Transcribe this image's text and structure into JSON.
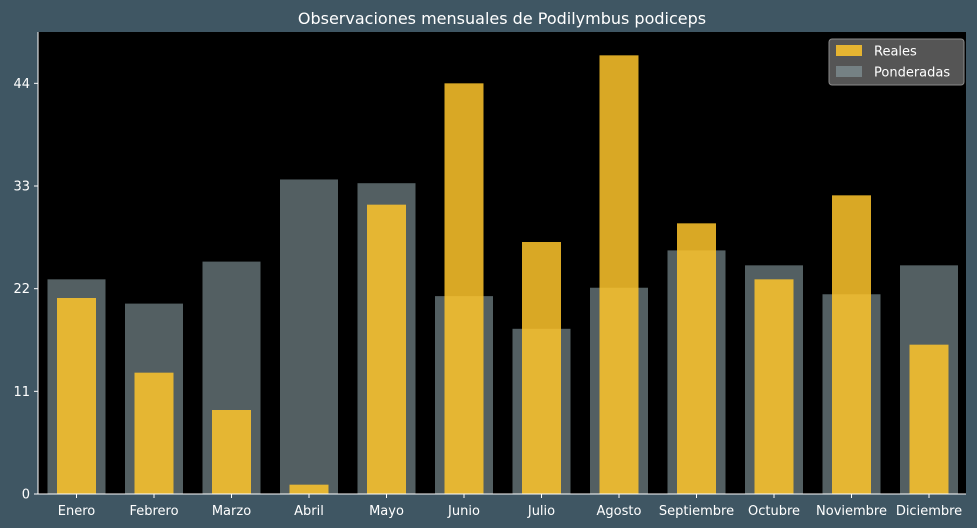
{
  "chart_data": {
    "type": "bar",
    "title": "Observaciones mensuales de Podilymbus podiceps",
    "xlabel": "",
    "ylabel": "",
    "categories": [
      "Enero",
      "Febrero",
      "Marzo",
      "Abril",
      "Mayo",
      "Junio",
      "Julio",
      "Agosto",
      "Septiembre",
      "Octubre",
      "Noviembre",
      "Diciembre"
    ],
    "series": [
      {
        "name": "Ponderadas",
        "color": "#8a9ea4",
        "values": [
          23.0,
          20.4,
          24.9,
          33.7,
          33.3,
          21.2,
          17.7,
          22.1,
          26.1,
          24.5,
          21.4,
          24.5
        ]
      },
      {
        "name": "Reales",
        "color": "#ffc52c",
        "values": [
          21,
          13,
          9,
          1,
          31,
          44,
          27,
          47,
          29,
          23,
          32,
          16
        ]
      }
    ],
    "ylim": [
      0,
      49.5
    ],
    "yticks": [
      0,
      11,
      22,
      33,
      44
    ],
    "grid": false,
    "legend_position": "top-right",
    "plot_background": "#000000",
    "figure_background": "#3f5663"
  }
}
